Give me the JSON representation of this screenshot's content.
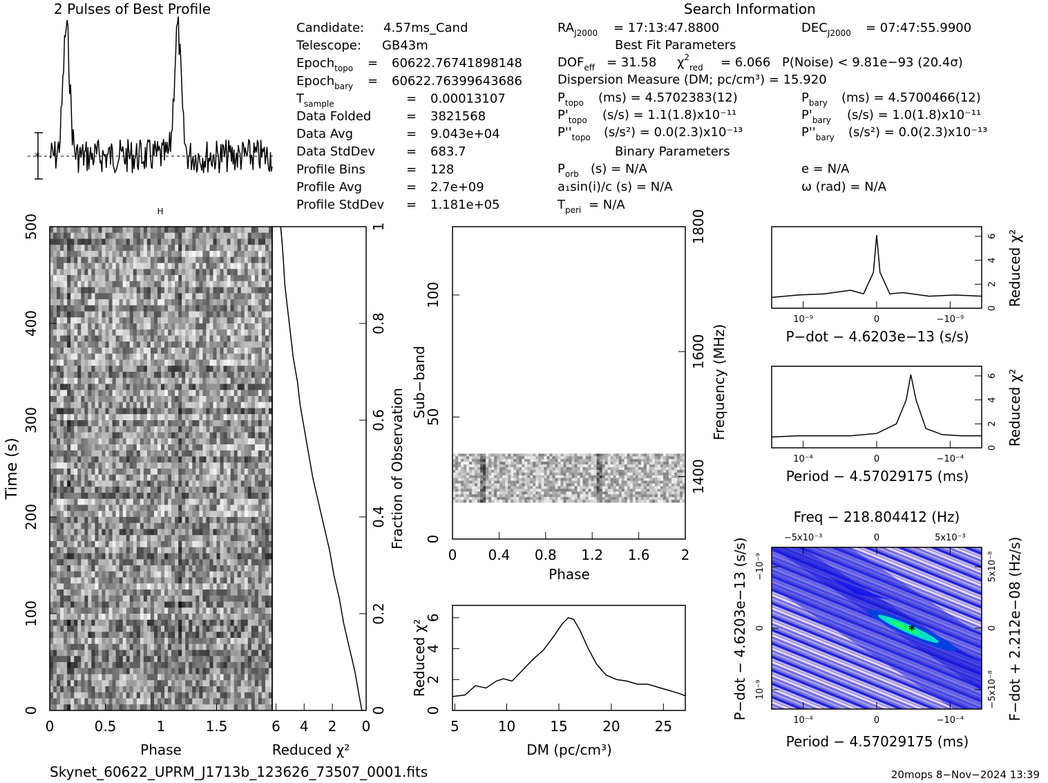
{
  "header": {
    "profile_title": "2 Pulses of Best Profile",
    "search_title": "Search Information",
    "best_fit_title": "Best Fit Parameters",
    "binary_title": "Binary Parameters"
  },
  "info_left": [
    {
      "key": "Candidate:",
      "sub": "",
      "eq": "",
      "value": "4.57ms_Cand"
    },
    {
      "key": "Telescope:",
      "sub": "",
      "eq": "",
      "value": "GB43m"
    },
    {
      "key": "Epoch",
      "sub": "topo",
      "eq": "=",
      "value": "60622.76741898148"
    },
    {
      "key": "Epoch",
      "sub": "bary",
      "eq": "=",
      "value": "60622.76399643686"
    },
    {
      "key": "T",
      "sub": "sample",
      "eq": "=",
      "value": "0.00013107"
    },
    {
      "key": "Data Folded",
      "sub": "",
      "eq": "=",
      "value": "3821568"
    },
    {
      "key": "Data Avg",
      "sub": "",
      "eq": "=",
      "value": "9.043e+04"
    },
    {
      "key": "Data StdDev",
      "sub": "",
      "eq": "=",
      "value": "683.7"
    },
    {
      "key": "Profile Bins",
      "sub": "",
      "eq": "=",
      "value": "128"
    },
    {
      "key": "Profile Avg",
      "sub": "",
      "eq": "=",
      "value": "2.7e+09"
    },
    {
      "key": "Profile StdDev",
      "sub": "",
      "eq": "=",
      "value": "1.181e+05"
    }
  ],
  "search_info": {
    "ra": "= 17:13:47.8800",
    "dec": "= 07:47:55.9900",
    "dof": "= 31.58",
    "chi2red": "= 6.066",
    "pnoise": "P(Noise) < 9.81e−93  (20.4σ)",
    "dm": "Dispersion Measure (DM; pc/cm³) = 15.920",
    "ptopo": "(ms) =  4.5702383(12)",
    "pbary": "(ms) =  4.5700466(12)",
    "pdtopo": "(s/s) =  1.1(1.8)x10⁻¹¹",
    "pdbary": "(s/s) =  1.0(1.8)x10⁻¹¹",
    "pddtopo": "(s/s²) = 0.0(2.3)x10⁻¹³",
    "pddbary": "(s/s²) = 0.0(2.3)x10⁻¹³",
    "porb": "(s) = N/A",
    "ecc": "e = N/A",
    "a1": "a₁sin(i)/c (s) = N/A",
    "omega": "ω (rad) = N/A",
    "tperi": "= N/A"
  },
  "footer": {
    "filename": "Skynet_60622_UPRM_J1713b_123626_73507_0001.fits",
    "stamp": "20mops  8−Nov−2024 13:39"
  },
  "chart_data": [
    {
      "type": "line",
      "title": "2 Pulses of Best Profile",
      "x_range": [
        0,
        2
      ],
      "peaks_phase": [
        0.15,
        1.15
      ]
    },
    {
      "type": "heatmap",
      "name": "time-phase",
      "xlabel": "Phase",
      "ylabel": "Time (s)",
      "x_ticks": [
        "0",
        "0.5",
        "1",
        "1.5"
      ],
      "y_ticks": [
        "0",
        "100",
        "200",
        "300",
        "400",
        "500"
      ],
      "xlim": [
        0,
        2
      ],
      "ylim": [
        0,
        500
      ]
    },
    {
      "type": "line",
      "name": "cumulative-chi2",
      "xlabel": "Reduced χ²",
      "ylabel": "Fraction of Observation",
      "x_ticks": [
        "6",
        "4",
        "2",
        "0"
      ],
      "y_ticks": [
        "0",
        "0.2",
        "0.4",
        "0.6",
        "0.8",
        "1"
      ],
      "x": [
        0.3,
        0.5,
        0.8,
        1.2,
        1.6,
        1.9,
        2.3,
        2.6,
        3.0,
        3.4,
        3.8,
        4.1,
        4.4,
        4.7,
        4.9,
        5.2,
        5.4,
        5.6,
        5.8,
        5.9,
        6.0,
        6.1
      ],
      "y": [
        0.0,
        0.03,
        0.08,
        0.13,
        0.18,
        0.23,
        0.28,
        0.33,
        0.38,
        0.43,
        0.48,
        0.53,
        0.58,
        0.63,
        0.68,
        0.73,
        0.78,
        0.83,
        0.88,
        0.93,
        0.97,
        1.0
      ],
      "xlim": [
        6.7,
        0
      ],
      "ylim": [
        0,
        1
      ]
    },
    {
      "type": "heatmap",
      "name": "subband-phase",
      "xlabel": "Phase",
      "ylabel": "Sub−band",
      "y2label": "Frequency (MHz)",
      "x_ticks": [
        "0",
        "0.4",
        "0.8",
        "1.2",
        "1.6",
        "2"
      ],
      "y_ticks": [
        "0",
        "50",
        "100"
      ],
      "y2_ticks": [
        "1400",
        "1600",
        "1800"
      ],
      "xlim": [
        0,
        2
      ],
      "ylim": [
        0,
        128
      ],
      "data_rows": [
        15,
        35
      ]
    },
    {
      "type": "line",
      "name": "dm-curve",
      "xlabel": "DM (pc/cm³)",
      "ylabel": "Reduced χ²",
      "x_ticks": [
        "5",
        "10",
        "15",
        "20",
        "25"
      ],
      "y_ticks": [
        "0",
        "2",
        "4",
        "6"
      ],
      "x": [
        4.8,
        6.0,
        7.0,
        8.0,
        9.0,
        9.7,
        10.5,
        11.5,
        12.5,
        13.5,
        14.5,
        15.3,
        15.9,
        16.4,
        17.0,
        17.8,
        18.6,
        19.5,
        20.5,
        21.5,
        22.5,
        23.5,
        24.5,
        25.5,
        26.5,
        27.1
      ],
      "y": [
        0.9,
        1.0,
        1.6,
        1.45,
        1.9,
        2.05,
        1.9,
        2.6,
        3.3,
        3.9,
        4.8,
        5.6,
        6.0,
        5.9,
        5.2,
        4.0,
        3.0,
        2.3,
        2.0,
        1.9,
        1.7,
        1.7,
        1.5,
        1.3,
        1.1,
        0.95
      ],
      "xlim": [
        4.8,
        27.1
      ],
      "ylim": [
        0,
        6.8
      ]
    },
    {
      "type": "line",
      "name": "pdot-curve",
      "xlabel": "P−dot − 4.6203e−13 (s/s)",
      "ylabel": "Reduced χ²",
      "x_ticks": [
        "10⁻⁹",
        "0",
        "−10⁻⁹"
      ],
      "y_ticks": [
        "0",
        "2",
        "4",
        "6"
      ],
      "x": [
        -1.6,
        -1.2,
        -0.8,
        -0.4,
        -0.2,
        -0.05,
        0.0,
        0.05,
        0.2,
        0.4,
        0.8,
        1.2,
        1.6
      ],
      "y": [
        0.9,
        1.1,
        1.2,
        1.5,
        1.2,
        3.0,
        6.1,
        3.0,
        1.2,
        1.3,
        1.0,
        1.1,
        1.0
      ],
      "xlim": [
        -1.6,
        1.6
      ],
      "ylim": [
        0,
        6.8
      ]
    },
    {
      "type": "line",
      "name": "period-curve",
      "xlabel": "Period − 4.57029175 (ms)",
      "ylabel": "Reduced χ²",
      "x_ticks": [
        "10⁻⁴",
        "0",
        "−10⁻⁴"
      ],
      "y_ticks": [
        "0",
        "2",
        "4",
        "6"
      ],
      "x": [
        -1.6,
        -1.2,
        -0.8,
        -0.4,
        0.0,
        0.3,
        0.45,
        0.52,
        0.6,
        0.75,
        1.0,
        1.3,
        1.6
      ],
      "y": [
        0.9,
        1.0,
        1.0,
        1.0,
        1.2,
        2.0,
        4.0,
        6.1,
        4.0,
        1.6,
        1.1,
        1.0,
        1.0
      ],
      "xlim": [
        -1.6,
        1.6
      ],
      "ylim": [
        0,
        6.8
      ]
    },
    {
      "type": "heatmap",
      "name": "p-pdot-plane",
      "title": "Freq − 218.804412 (Hz)",
      "xlabel": "Period − 4.57029175 (ms)",
      "ylabel": "P−dot − 4.6203e−13 (s/s)",
      "y2label": "F−dot + 2.212e−08 (Hz/s)",
      "x_ticks": [
        "10⁻⁴",
        "0",
        "−10⁻⁴"
      ],
      "x2_ticks": [
        "−5x10⁻³",
        "0",
        "5x10⁻³"
      ],
      "y_ticks": [
        "10⁻⁹",
        "0",
        "−10⁻⁹"
      ],
      "y2_ticks": [
        "−5x10⁻⁸",
        "0",
        "5x10⁻⁸"
      ],
      "colors": [
        "#5a5ad6",
        "#1515e0",
        "#00e8c8",
        "#e8d8f0"
      ]
    }
  ]
}
